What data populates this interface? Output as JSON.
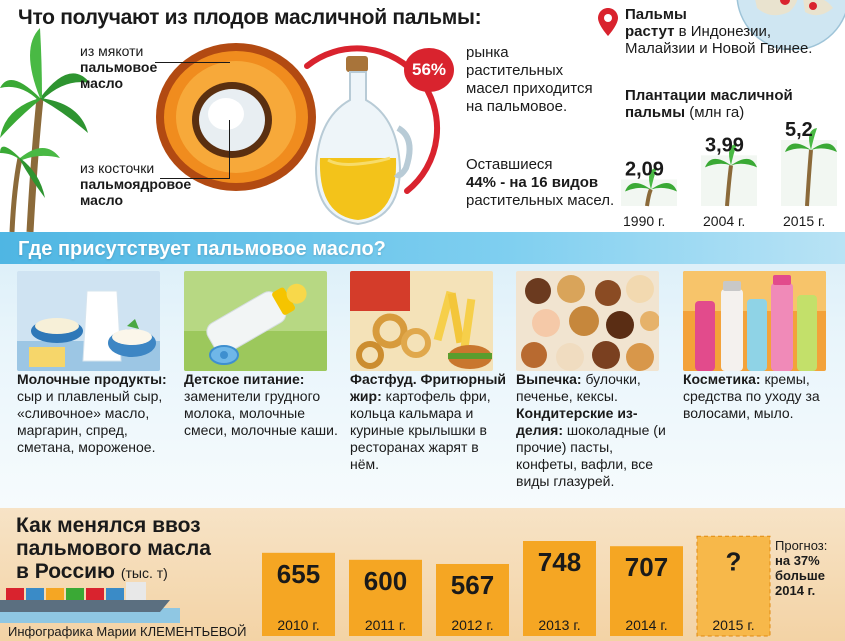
{
  "top": {
    "title": "Что получают из плодов масличной пальмы:",
    "pulp": {
      "prefix": "из мякоти",
      "product_line1": "пальмовое",
      "product_line2": "масло"
    },
    "kernel": {
      "prefix": "из косточки",
      "product_line1": "пальмоядровое",
      "product_line2": "масло"
    },
    "market_share": "56%",
    "market_text": "рынка растительных масел приходится на пальмовое.",
    "rest_prefix": "Оставшиеся",
    "rest_bold": "44% - на 16 видов",
    "rest_suffix": "растительных масел.",
    "grow_bold": "Пальмы",
    "grow_bold2": "растут",
    "grow_text": "в Индонезии, Малайзии и Новой Гвинее.",
    "plant_title_bold": "Плантации масличной пальмы",
    "plant_title_unit": "(млн га)"
  },
  "chart_data": [
    {
      "type": "bar",
      "title": "Плантации масличной пальмы",
      "ylabel": "млн га",
      "categories": [
        "1990 г.",
        "2004 г.",
        "2015 г."
      ],
      "value_labels": [
        "2,09",
        "3,99",
        "5,2"
      ],
      "values": [
        2.09,
        3.99,
        5.2
      ]
    },
    {
      "type": "bar",
      "title": "Как менялся ввоз пальмового масла в Россию",
      "ylabel": "тыс. т",
      "categories": [
        "2010 г.",
        "2011 г.",
        "2012 г.",
        "2013 г.",
        "2014 г.",
        "2015 г."
      ],
      "value_labels": [
        "655",
        "600",
        "567",
        "748",
        "707",
        "?"
      ],
      "values": [
        655,
        600,
        567,
        748,
        707,
        null
      ]
    }
  ],
  "middle": {
    "title": "Где присутствует пальмовое масло?",
    "categories": [
      {
        "bold": "Молочные продукты:",
        "text": "сыр и плавленый сыр, «сливочное» масло, маргарин, спред, сметана, мороженое."
      },
      {
        "bold": "Детское питание:",
        "text": "заменители грудного молока, молочные смеси, молочные каши."
      },
      {
        "bold": "Фастфуд. Фритюрный жир:",
        "text": "картофель фри, кольца кальмара и куриные крылышки в ресторанах жарят в нём."
      },
      {
        "bold": "Выпечка:",
        "text": "булочки, печенье, кексы.",
        "bold2": "Кондитерские из-делия:",
        "text2": "шоколадные (и прочие) пасты, конфеты, вафли, все виды глазурей."
      },
      {
        "bold": "Косметика:",
        "text": "кремы, средства по уходу за волосами, мыло."
      }
    ]
  },
  "bottom": {
    "title_line1": "Как менялся ввоз",
    "title_line2": "пальмового масла",
    "title_line3": "в Россию",
    "unit": "(тыс. т)",
    "forecast_label": "Прогноз:",
    "forecast_bold": "на 37% больше 2014 г.",
    "credit": "Инфографика Марии КЛЕМЕНТЬЕВОЙ"
  },
  "colors": {
    "accent_red": "#d9232e",
    "bar_orange": "#f5a623",
    "palm_green": "#3aa935",
    "oil_yellow": "#f3c31a",
    "sky_blue": "#4fb6e3"
  }
}
